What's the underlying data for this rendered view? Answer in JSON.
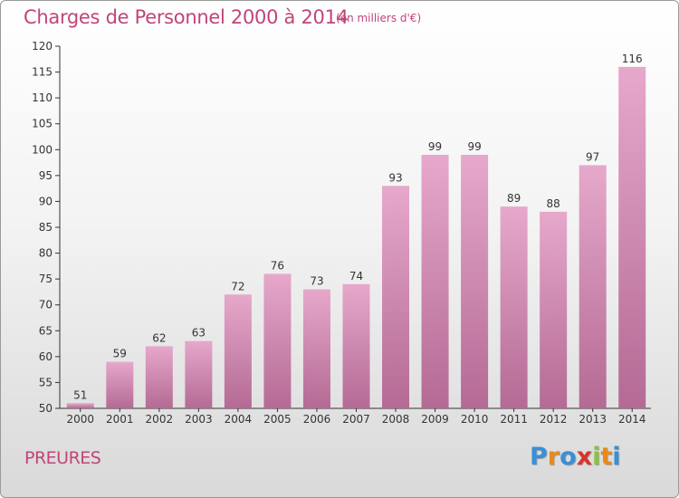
{
  "header": {
    "title": "Charges de Personnel 2000 à 2014",
    "subtitle": "(en milliers d'€)"
  },
  "footer": {
    "location": "PREURES",
    "logo": [
      "P",
      "r",
      "o",
      "x",
      "i",
      "t",
      "i"
    ],
    "logo_colors": [
      "#3a8fd6",
      "#e88a1a",
      "#3a8fd6",
      "#d8352a",
      "#8ac43f",
      "#e88a1a",
      "#3a8fd6"
    ]
  },
  "colors": {
    "bar_top": "#e6a8cb",
    "bar_bottom": "#b46a94",
    "text": "#c0457a",
    "axis": "#333333"
  },
  "chart_data": {
    "type": "bar",
    "categories": [
      "2000",
      "2001",
      "2002",
      "2003",
      "2004",
      "2005",
      "2006",
      "2007",
      "2008",
      "2009",
      "2010",
      "2011",
      "2012",
      "2013",
      "2014"
    ],
    "values": [
      51,
      59,
      62,
      63,
      72,
      76,
      73,
      74,
      93,
      99,
      99,
      89,
      88,
      97,
      116
    ],
    "data_labels": [
      "51",
      "59",
      "62",
      "63",
      "72",
      "76",
      "73",
      "74",
      "93",
      "99",
      "99",
      "89",
      "88",
      "97",
      "116"
    ],
    "ylim": [
      50,
      120
    ],
    "yticks": [
      50,
      55,
      60,
      65,
      70,
      75,
      80,
      85,
      90,
      95,
      100,
      105,
      110,
      115,
      120
    ],
    "xlabel": "",
    "ylabel": "",
    "grid": false,
    "legend": "none"
  }
}
